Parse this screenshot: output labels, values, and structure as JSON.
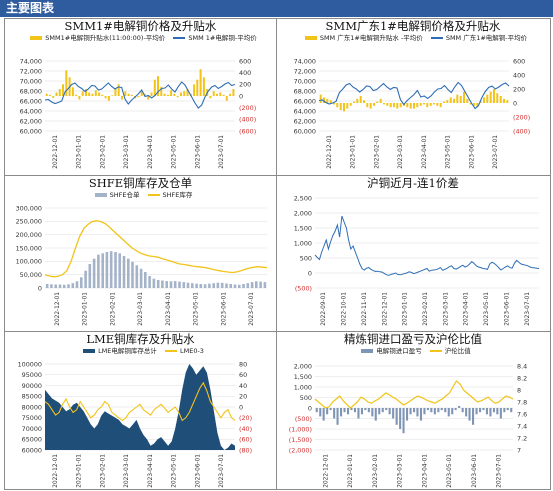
{
  "header": {
    "title": "主要图表"
  },
  "chart_data": [
    {
      "type": "bar+line",
      "title": "SMM1#电解铜价格及升贴水",
      "legend": [
        "SMM1#电解铜升贴水(11:00:00)-平均价",
        "SMM 1#电解铜-平均价"
      ],
      "x_ticks": [
        "2022-12-01",
        "2023-01-01",
        "2023-02-01",
        "2023-03-01",
        "2023-04-01",
        "2023-05-01",
        "2023-06-01",
        "2023-07-01"
      ],
      "y_left_ticks": [
        "74,000",
        "72,000",
        "70,000",
        "68,000",
        "66,000",
        "64,000",
        "62,000",
        "60,000"
      ],
      "y_right_ticks": [
        "600",
        "400",
        "200",
        "0",
        "(200)",
        "(400)",
        "(600)"
      ],
      "ylim_left": [
        60000,
        74000
      ],
      "ylim_right": [
        -600,
        600
      ],
      "series": [
        {
          "name": "SMM1#电解铜升贴水(11:00:00)-平均价",
          "axis": "right",
          "color": "#f2c319",
          "values": [
            40,
            20,
            -30,
            60,
            120,
            200,
            440,
            320,
            150,
            20,
            -60,
            80,
            120,
            60,
            40,
            100,
            60,
            20,
            -40,
            -80,
            10,
            120,
            200,
            -60,
            80,
            40,
            20,
            -40,
            -20,
            80,
            40,
            -60,
            60,
            280,
            340,
            160,
            40,
            20,
            100,
            40,
            -20,
            60,
            80,
            120,
            40,
            200,
            280,
            460,
            320,
            120,
            -40,
            80,
            40,
            60,
            20,
            -80,
            40,
            120
          ]
        },
        {
          "name": "SMM 1#电解铜-平均价",
          "axis": "left",
          "color": "#2e6db5",
          "values": [
            66200,
            66300,
            65800,
            65500,
            65700,
            66000,
            67800,
            68500,
            69300,
            69600,
            68900,
            68500,
            67900,
            68400,
            69100,
            69000,
            68200,
            68400,
            69000,
            69600,
            68900,
            68400,
            68800,
            68700,
            66400,
            65400,
            66200,
            66800,
            67400,
            68200,
            66900,
            67100,
            66600,
            67100,
            67900,
            68500,
            68600,
            69200,
            68400,
            67800,
            68900,
            69800,
            69200,
            68000,
            66800,
            65600,
            64600,
            65200,
            66800,
            68000,
            68800,
            69100,
            68500,
            68900,
            69400,
            69700,
            69100,
            69300
          ]
        }
      ]
    },
    {
      "type": "bar+line",
      "title": "SMM广东1#电解铜价格及升贴水",
      "legend": [
        "SMM 广东1#电解铜升贴水 -平均价",
        "SMM 广东1#电解铜-平均价"
      ],
      "x_ticks": [
        "2022-12-01",
        "2023-01-01",
        "2023-02-01",
        "2023-03-01",
        "2023-04-01",
        "2023-05-01",
        "2023-06-01",
        "2023-07-01"
      ],
      "y_left_ticks": [
        "74,000",
        "72,000",
        "70,000",
        "68,000",
        "66,000",
        "64,000",
        "62,000",
        "60,000"
      ],
      "y_right_ticks": [
        "600",
        "400",
        "200",
        "0",
        "(200)",
        "(400)"
      ],
      "ylim_left": [
        60000,
        74000
      ],
      "ylim_right": [
        -400,
        600
      ],
      "series": [
        {
          "name": "SMM 广东1#电解铜升贴水 -平均价",
          "axis": "right",
          "color": "#f2c319",
          "values": [
            120,
            80,
            60,
            40,
            -20,
            -60,
            -100,
            -120,
            -80,
            -40,
            20,
            60,
            100,
            40,
            -60,
            -80,
            -40,
            20,
            60,
            -20,
            -40,
            -60,
            -60,
            -80,
            -60,
            -40,
            -60,
            -80,
            -80,
            -60,
            -40,
            -20,
            -60,
            -40,
            -20,
            -40,
            -60,
            20,
            40,
            80,
            60,
            120,
            100,
            160,
            60,
            -20,
            -40,
            -60,
            20,
            80,
            120,
            160,
            200,
            140,
            100,
            60,
            40
          ]
        },
        {
          "name": "SMM 广东1#电解铜-平均价",
          "axis": "left",
          "color": "#2e6db5",
          "values": [
            66100,
            66200,
            65700,
            65400,
            65600,
            65900,
            67700,
            68400,
            69200,
            69500,
            68800,
            68400,
            67800,
            68300,
            69000,
            68900,
            68100,
            68300,
            68900,
            69500,
            68800,
            68300,
            68700,
            68600,
            66300,
            65300,
            66100,
            66700,
            67300,
            68100,
            66800,
            67000,
            66500,
            67000,
            67800,
            68400,
            68500,
            69100,
            68300,
            67700,
            68800,
            69700,
            69100,
            67900,
            66700,
            65500,
            64500,
            65100,
            66700,
            67900,
            68700,
            69000,
            68400,
            68800,
            69300,
            69600,
            69000
          ]
        }
      ]
    },
    {
      "type": "bar+line",
      "title": "SHFE铜库存及仓单",
      "legend": [
        "SHFE仓单",
        "SHFE库存"
      ],
      "x_ticks": [
        "2022-12-01",
        "2023-01-01",
        "2023-02-01",
        "2023-03-01",
        "2023-04-01",
        "2023-05-01",
        "2023-06-01",
        "2023-07-01"
      ],
      "y_ticks": [
        "300,000",
        "250,000",
        "200,000",
        "150,000",
        "100,000",
        "50,000",
        "0"
      ],
      "ylim": [
        0,
        300000
      ],
      "series": [
        {
          "name": "SHFE仓单",
          "type": "bar",
          "color": "#a5b3c8",
          "values": [
            15000,
            14000,
            13000,
            13000,
            12000,
            14000,
            18000,
            25000,
            40000,
            65000,
            90000,
            110000,
            125000,
            130000,
            135000,
            138000,
            135000,
            130000,
            120000,
            110000,
            98000,
            85000,
            72000,
            60000,
            45000,
            35000,
            30000,
            28000,
            26000,
            25000,
            26000,
            24000,
            22000,
            20000,
            18000,
            16000,
            15000,
            14000,
            16000,
            18000,
            20000,
            19000,
            17000,
            15000,
            13000,
            12000,
            15000,
            18000,
            22000,
            25000,
            24000,
            22000
          ]
        },
        {
          "name": "SHFE库存",
          "type": "line",
          "color": "#f2c319",
          "values": [
            50000,
            45000,
            42000,
            44000,
            50000,
            65000,
            100000,
            150000,
            195000,
            225000,
            240000,
            250000,
            252000,
            248000,
            240000,
            225000,
            210000,
            195000,
            180000,
            165000,
            150000,
            140000,
            130000,
            125000,
            120000,
            118000,
            115000,
            110000,
            105000,
            100000,
            95000,
            90000,
            88000,
            85000,
            82000,
            80000,
            78000,
            76000,
            72000,
            68000,
            65000,
            62000,
            60000,
            58000,
            60000,
            65000,
            70000,
            75000,
            78000,
            80000,
            78000,
            76000
          ]
        }
      ]
    },
    {
      "type": "line",
      "title": "沪铜近月-连1价差",
      "x_ticks": [
        "2022-09-01",
        "2022-10-01",
        "2022-11-01",
        "2022-12-01",
        "2023-01-01",
        "2023-02-01",
        "2023-03-01",
        "2023-04-01",
        "2023-05-01",
        "2023-06-01",
        "2023-07-01"
      ],
      "y_ticks": [
        "2,500",
        "2,000",
        "1,500",
        "1,000",
        "500",
        "0",
        "(500)"
      ],
      "ylim": [
        -500,
        2500
      ],
      "series": [
        {
          "name": "",
          "color": "#2e6db5",
          "values": [
            600,
            520,
            450,
            700,
            900,
            1100,
            800,
            1050,
            1250,
            1400,
            1600,
            1200,
            1900,
            1700,
            1500,
            1100,
            800,
            900,
            700,
            500,
            300,
            150,
            100,
            160,
            180,
            120,
            80,
            50,
            60,
            40,
            30,
            -20,
            -60,
            -80,
            -40,
            -30,
            0,
            -50,
            -60,
            -40,
            -20,
            0,
            40,
            20,
            -20,
            0,
            30,
            60,
            90,
            120,
            150,
            60,
            90,
            100,
            110,
            140,
            180,
            90,
            120,
            160,
            210,
            240,
            150,
            130,
            170,
            220,
            260,
            200,
            230,
            300,
            380,
            320,
            240,
            200,
            180,
            150,
            140,
            120,
            300,
            360,
            320,
            260,
            180,
            100,
            150,
            200,
            240,
            180,
            160,
            320,
            420,
            360,
            300,
            280,
            260,
            240,
            200,
            180,
            170,
            160,
            150
          ]
        }
      ]
    },
    {
      "type": "area+line",
      "title": "LME铜库存及升贴水",
      "legend": [
        "LME电解铜库存总计",
        "LME0-3"
      ],
      "x_ticks": [
        "2022-12-01",
        "2023-01-01",
        "2023-02-01",
        "2023-03-01",
        "2023-04-01",
        "2023-05-01",
        "2023-06-01",
        "2023-07-01"
      ],
      "y_left_ticks": [
        "100000",
        "95000",
        "90000",
        "85000",
        "80000",
        "75000",
        "70000",
        "65000",
        "60000"
      ],
      "y_right_ticks": [
        "80",
        "60",
        "40",
        "20",
        "0",
        "(20)",
        "(40)",
        "(60)",
        "(80)"
      ],
      "ylim_left": [
        60000,
        100000
      ],
      "ylim_right": [
        -80,
        80
      ],
      "series": [
        {
          "name": "LME电解铜库存总计",
          "type": "area",
          "axis": "left",
          "color": "#1f4e79",
          "values": [
            88000,
            86000,
            84000,
            83000,
            82000,
            80000,
            78000,
            79000,
            81000,
            82000,
            80000,
            78000,
            75000,
            72000,
            70000,
            72000,
            76000,
            78000,
            77000,
            76000,
            75000,
            74000,
            72000,
            71000,
            70000,
            72000,
            74000,
            70000,
            67000,
            65000,
            62000,
            63000,
            65000,
            66000,
            64000,
            62000,
            64000,
            70000,
            78000,
            88000,
            96000,
            100000,
            98000,
            95000,
            97000,
            99000,
            96000,
            88000,
            78000,
            68000,
            62000,
            60000,
            61000,
            63000,
            62000
          ]
        },
        {
          "name": "LME0-3",
          "type": "line",
          "axis": "right",
          "color": "#f2c319",
          "values": [
            10,
            5,
            -5,
            -15,
            -10,
            5,
            15,
            0,
            -10,
            -5,
            10,
            0,
            -10,
            -20,
            -15,
            -5,
            0,
            10,
            5,
            -10,
            -15,
            -20,
            -25,
            -20,
            -10,
            -5,
            0,
            5,
            -5,
            -10,
            -15,
            -5,
            0,
            5,
            -2,
            -10,
            -5,
            0,
            -10,
            -25,
            -20,
            -10,
            5,
            20,
            35,
            45,
            30,
            10,
            0,
            -10,
            -20,
            -10,
            -5,
            -20,
            -25
          ]
        }
      ]
    },
    {
      "type": "bar+line",
      "title": "精炼铜进口盈亏及沪伦比值",
      "legend": [
        "电解铜进口盈亏",
        "沪伦比值"
      ],
      "x_ticks": [
        "2022-12-01",
        "2023-01-01",
        "2023-02-01",
        "2023-03-01",
        "2023-04-01",
        "2023-05-01",
        "2023-06-01",
        "2023-07-01"
      ],
      "y_left_ticks": [
        "2,000",
        "1,500",
        "1,000",
        "500",
        "0",
        "(500)",
        "(1,000)",
        "(1,500)",
        "(2,000)"
      ],
      "y_right_ticks": [
        "8.4",
        "8.2",
        "8",
        "7.8",
        "7.6",
        "7.4",
        "7.2",
        "7"
      ],
      "ylim_left": [
        -2000,
        2000
      ],
      "ylim_right": [
        7,
        8.4
      ],
      "series": [
        {
          "name": "电解铜进口盈亏",
          "type": "bar",
          "axis": "left",
          "color": "#7f95b5",
          "values": [
            -200,
            -400,
            -600,
            -300,
            -100,
            -500,
            -800,
            -400,
            -200,
            -300,
            -100,
            -200,
            -500,
            -300,
            -100,
            -200,
            -400,
            -600,
            -300,
            -200,
            -100,
            -300,
            -500,
            -800,
            -1000,
            -1200,
            -600,
            -300,
            -200,
            -400,
            -600,
            -300,
            -100,
            -200,
            -300,
            -200,
            -100,
            -200,
            -400,
            -300,
            -100,
            100,
            -200,
            -400,
            -600,
            -800,
            -300,
            -200,
            -100,
            -300,
            -400,
            -200,
            -300,
            -500,
            -200,
            -100,
            -200
          ]
        },
        {
          "name": "沪伦比值",
          "type": "line",
          "axis": "right",
          "color": "#f2c319",
          "values": [
            7.85,
            7.8,
            7.75,
            7.7,
            7.72,
            7.8,
            7.85,
            7.9,
            7.82,
            7.76,
            7.7,
            7.75,
            7.8,
            7.88,
            7.85,
            7.8,
            7.78,
            7.82,
            7.85,
            7.9,
            7.95,
            7.92,
            7.88,
            7.85,
            7.8,
            7.75,
            7.78,
            7.82,
            7.86,
            7.9,
            7.88,
            7.85,
            7.82,
            7.8,
            7.78,
            7.82,
            7.85,
            7.9,
            7.95,
            8.05,
            8.15,
            8.1,
            8.0,
            7.95,
            7.9,
            7.85,
            7.8,
            7.82,
            7.85,
            7.88,
            7.82,
            7.78,
            7.8,
            7.85,
            7.9,
            7.88,
            7.85
          ]
        }
      ]
    }
  ]
}
